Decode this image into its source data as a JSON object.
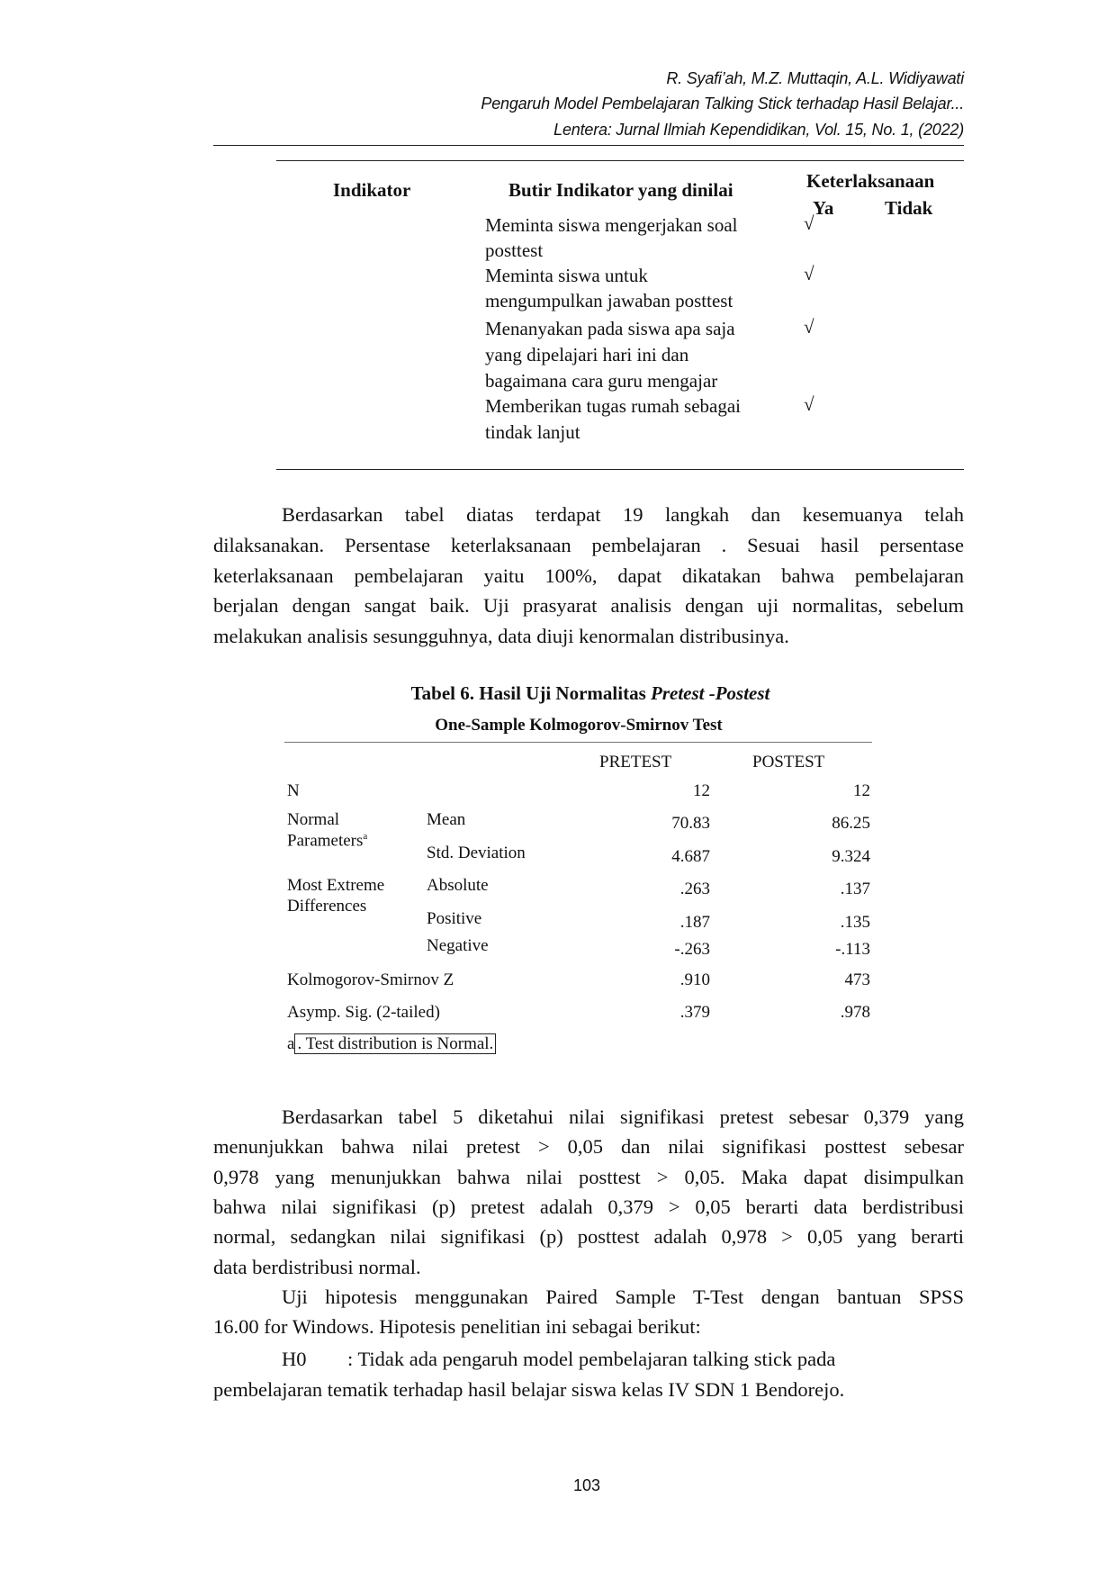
{
  "header": {
    "authors": "R. Syafi’ah, M.Z. Muttaqin, A.L. Widiyawati",
    "title": "Pengaruh Model Pembelajaran Talking Stick terhadap Hasil Belajar...",
    "journal": "Lentera: Jurnal Ilmiah Kependidikan, Vol. 15, No. 1, (2022)"
  },
  "table5": {
    "col_indikator": "Indikator",
    "col_butir": "Butir Indikator yang dinilai",
    "col_keterlaksanaan": "Keterlaksanaan",
    "col_ya": "Ya",
    "col_tidak": "Tidak",
    "rows": [
      {
        "lines": [
          "Meminta siswa mengerjakan soal",
          "posttest"
        ],
        "ya": "√",
        "tidak": ""
      },
      {
        "lines": [
          "Meminta siswa untuk",
          "mengumpulkan jawaban posttest"
        ],
        "ya": "√",
        "tidak": ""
      },
      {
        "lines": [
          "Menanyakan pada siswa apa saja",
          "yang dipelajari hari ini dan",
          "bagaimana cara guru mengajar"
        ],
        "ya": "√",
        "tidak": ""
      },
      {
        "lines": [
          "Memberikan tugas rumah sebagai",
          "tindak lanjut"
        ],
        "ya": "√",
        "tidak": ""
      }
    ]
  },
  "paragraph1": [
    "Berdasarkan tabel diatas terdapat 19 langkah dan kesemuanya telah",
    "dilaksanakan. Persentase keterlaksanaan pembelajaran . Sesuai hasil persentase",
    "keterlaksanaan pembelajaran yaitu 100%, dapat dikatakan bahwa pembelajaran",
    "berjalan dengan sangat baik. Uji prasyarat analisis dengan uji normalitas, sebelum",
    "melakukan analisis sesungguhnya, data diuji kenormalan distribusinya."
  ],
  "table6": {
    "caption": "Tabel 6. Hasil Uji Normalitas ",
    "caption_italic": "Pretest -Postest",
    "subtitle": "One-Sample Kolmogorov-Smirnov Test",
    "col_pretest": "PRETEST",
    "col_posttest": "POSTEST",
    "rows": [
      {
        "label": "N",
        "sub": "",
        "pre": "12",
        "post": "12"
      },
      {
        "label": "Normal",
        "label2": "Parameters",
        "sup": "a",
        "sub": "Mean",
        "pre": "70.83",
        "post": "86.25"
      },
      {
        "label": "",
        "sub": "Std. Deviation",
        "pre": "4.687",
        "post": "9.324"
      },
      {
        "label": "Most Extreme",
        "label2": "Differences",
        "sub": "Absolute",
        "pre": ".263",
        "post": ".137"
      },
      {
        "label": "",
        "sub": "Positive",
        "pre": ".187",
        "post": ".135"
      },
      {
        "label": "",
        "sub": "Negative",
        "pre": "-.263",
        "post": "-.113"
      },
      {
        "label": "Kolmogorov-Smirnov Z",
        "sub": "",
        "pre": ".910",
        "post": "473"
      },
      {
        "label": "Asymp. Sig. (2-tailed)",
        "sub": "",
        "pre": ".379",
        "post": ".978"
      }
    ],
    "note_prefix": "a",
    "note": ". Test distribution is Normal."
  },
  "paragraph2": [
    "Berdasarkan tabel 5 diketahui nilai signifikasi pretest sebesar 0,379 yang",
    "menunjukkan bahwa nilai pretest > 0,05 dan nilai signifikasi posttest sebesar",
    "0,978 yang menunjukkan bahwa nilai posttest > 0,05. Maka dapat disimpulkan",
    "bahwa nilai signifikasi (p) pretest adalah 0,379 > 0,05 berarti data berdistribusi",
    "normal, sedangkan nilai signifikasi (p) posttest adalah 0,978 > 0,05 yang berarti",
    "data berdistribusi normal."
  ],
  "paragraph3": [
    "Uji hipotesis menggunakan Paired Sample T-Test dengan bantuan SPSS",
    "16.00 for Windows. Hipotesis penelitian ini sebagai berikut:"
  ],
  "hypothesis": {
    "label": "H0",
    "line1": ": Tidak ada pengaruh model pembelajaran talking stick pada",
    "line2": "pembelajaran tematik terhadap hasil belajar siswa kelas IV SDN 1 Bendorejo."
  },
  "page_number": "103"
}
